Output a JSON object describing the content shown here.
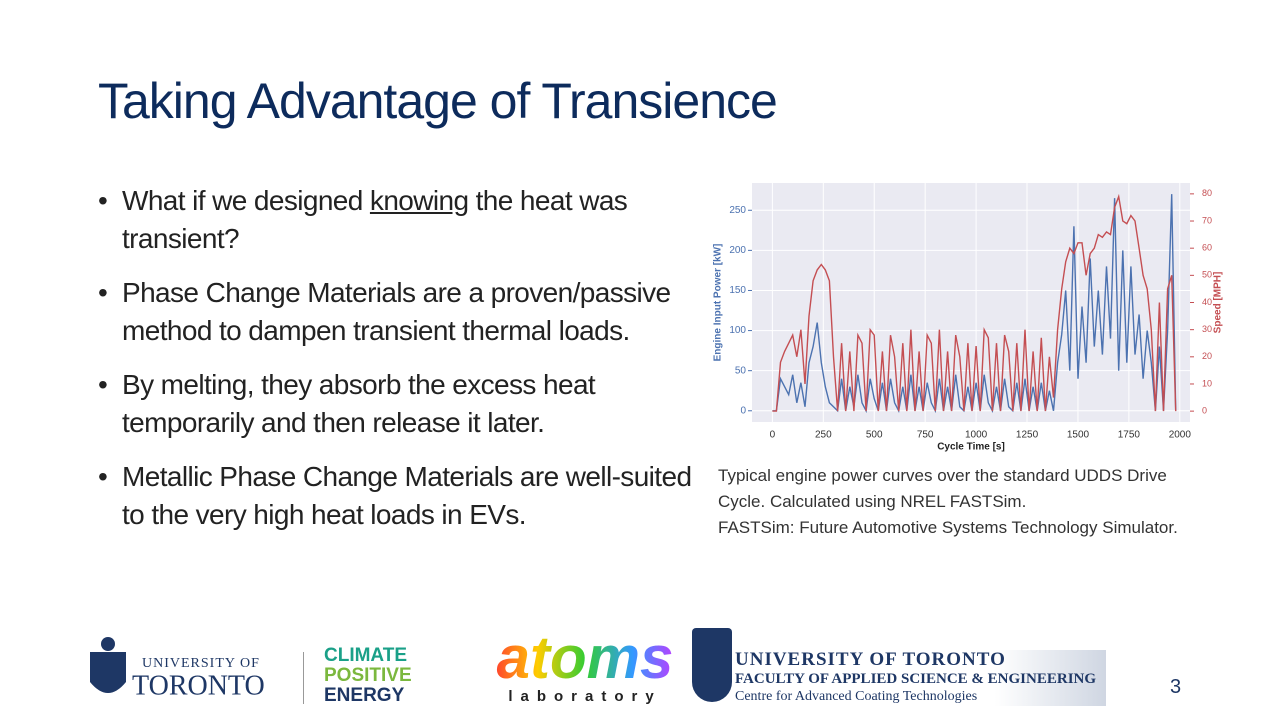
{
  "title": "Taking Advantage of Transience",
  "bullets": [
    [
      "What if we designed ",
      "knowing",
      " the heat was transient?"
    ],
    [
      "Phase Change Materials are a proven/passive method to dampen transient thermal loads."
    ],
    [
      "By melting, they absorb the excess heat temporarily and then release it later."
    ],
    [
      "Metallic Phase Change Materials are well-suited to the very high heat loads in EVs."
    ]
  ],
  "chart_data": {
    "type": "line",
    "xlabel": "Cycle Time [s]",
    "ylabel": "Engine Input Power [kW]",
    "y2label": "Speed [MPH]",
    "x": [
      0,
      20,
      40,
      60,
      80,
      100,
      120,
      140,
      160,
      180,
      200,
      220,
      240,
      260,
      280,
      300,
      320,
      340,
      360,
      380,
      400,
      420,
      440,
      460,
      480,
      500,
      520,
      540,
      560,
      580,
      600,
      620,
      640,
      660,
      680,
      700,
      720,
      740,
      760,
      780,
      800,
      820,
      840,
      860,
      880,
      900,
      920,
      940,
      960,
      980,
      1000,
      1020,
      1040,
      1060,
      1080,
      1100,
      1120,
      1140,
      1160,
      1180,
      1200,
      1220,
      1240,
      1260,
      1280,
      1300,
      1320,
      1340,
      1360,
      1380,
      1400,
      1420,
      1440,
      1460,
      1480,
      1500,
      1520,
      1540,
      1560,
      1580,
      1600,
      1620,
      1640,
      1660,
      1680,
      1700,
      1720,
      1740,
      1760,
      1780,
      1800,
      1820,
      1840,
      1860,
      1880,
      1900,
      1920,
      1940,
      1960,
      1980
    ],
    "series": [
      {
        "color": "#4c72b0",
        "axis": "y",
        "values": [
          0,
          0,
          40,
          30,
          20,
          45,
          10,
          35,
          5,
          60,
          80,
          110,
          60,
          30,
          10,
          5,
          0,
          40,
          0,
          30,
          5,
          45,
          10,
          0,
          40,
          15,
          0,
          35,
          0,
          40,
          10,
          0,
          30,
          0,
          45,
          0,
          30,
          0,
          35,
          10,
          0,
          40,
          0,
          30,
          0,
          45,
          5,
          0,
          30,
          0,
          35,
          0,
          45,
          10,
          0,
          30,
          0,
          40,
          5,
          0,
          35,
          0,
          40,
          0,
          30,
          0,
          35,
          0,
          25,
          0,
          60,
          95,
          150,
          50,
          230,
          40,
          130,
          60,
          190,
          80,
          150,
          70,
          180,
          90,
          265,
          50,
          200,
          60,
          180,
          70,
          120,
          40,
          100,
          60,
          0,
          80,
          0,
          100,
          270,
          0
        ]
      },
      {
        "color": "#c44e52",
        "axis": "y2",
        "values": [
          0,
          0,
          18,
          22,
          25,
          28,
          20,
          30,
          10,
          35,
          48,
          52,
          54,
          52,
          48,
          20,
          0,
          25,
          0,
          22,
          0,
          28,
          25,
          0,
          30,
          28,
          0,
          22,
          0,
          28,
          20,
          0,
          25,
          0,
          30,
          0,
          22,
          0,
          28,
          25,
          0,
          30,
          0,
          22,
          0,
          28,
          20,
          0,
          25,
          0,
          24,
          0,
          30,
          27,
          0,
          25,
          0,
          28,
          22,
          0,
          25,
          0,
          30,
          0,
          22,
          0,
          27,
          0,
          20,
          5,
          30,
          45,
          55,
          60,
          58,
          62,
          62,
          50,
          58,
          60,
          65,
          64,
          66,
          65,
          75,
          79,
          70,
          69,
          72,
          70,
          60,
          50,
          45,
          30,
          0,
          40,
          0,
          45,
          50,
          0
        ]
      }
    ],
    "xlim": [
      -100,
      2050
    ],
    "ylim": [
      -14,
      284
    ],
    "y2lim": [
      -4,
      84
    ],
    "xticks": [
      0,
      250,
      500,
      750,
      1000,
      1250,
      1500,
      1750,
      2000
    ],
    "yticks": [
      0,
      50,
      100,
      150,
      200,
      250
    ],
    "y2ticks": [
      0,
      10,
      20,
      30,
      40,
      50,
      60,
      70,
      80
    ],
    "grid": true
  },
  "caption": [
    "Typical engine power curves over the standard UDDS Drive Cycle. Calculated using NREL FASTSim.",
    "FASTSim: Future Automotive Systems Technology Simulator."
  ],
  "footer": {
    "uoft": [
      "UNIVERSITY OF",
      "TORONTO"
    ],
    "climate": [
      "CLIMATE",
      "POSITIVE",
      "ENERGY"
    ],
    "atoms": [
      "atoms",
      "laboratory"
    ],
    "faculty": [
      "UNIVERSITY OF TORONTO",
      "FACULTY OF APPLIED SCIENCE & ENGINEERING",
      "Centre for Advanced Coating Technologies"
    ],
    "page": 3
  }
}
